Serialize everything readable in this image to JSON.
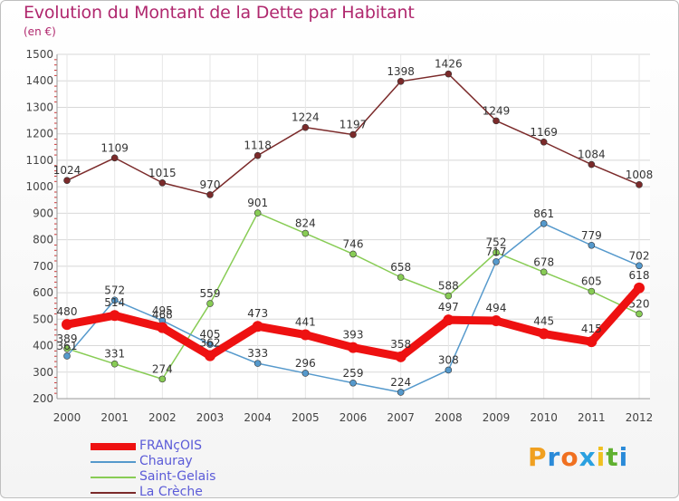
{
  "title": "Evolution du Montant de la Dette par Habitant",
  "subtitle": "(en €)",
  "logo": {
    "letters": [
      "P",
      "r",
      "o",
      "x",
      "i",
      "t",
      "i"
    ],
    "colors": [
      "#f0a020",
      "#2a8ad8",
      "#f07020",
      "#2aa0e0",
      "#f0c020",
      "#60b030",
      "#2a8ad8"
    ]
  },
  "chart_data": {
    "type": "line",
    "x": [
      "2000",
      "2001",
      "2002",
      "2003",
      "2004",
      "2005",
      "2006",
      "2007",
      "2008",
      "2009",
      "2010",
      "2011",
      "2012"
    ],
    "ylim": [
      200,
      1500
    ],
    "yticks": [
      "200",
      "300",
      "400",
      "500",
      "600",
      "700",
      "800",
      "900",
      "1000",
      "1100",
      "1200",
      "1300",
      "1400",
      "1500"
    ],
    "grid": true,
    "series": [
      {
        "name": "La Crèche",
        "color": "#7b2a2a",
        "values": [
          1024,
          1109,
          1015,
          970,
          1118,
          1224,
          1197,
          1398,
          1426,
          1249,
          1169,
          1084,
          1008
        ],
        "labels": [
          "1024",
          "1109",
          "1015",
          "970",
          "1118",
          "1224",
          "1197",
          "1398",
          "1426",
          "1249",
          "1169",
          "1084",
          "1008"
        ]
      },
      {
        "name": "Saint-Gelais",
        "color": "#88cc55",
        "values": [
          389,
          331,
          274,
          559,
          901,
          824,
          746,
          658,
          588,
          752,
          678,
          605,
          520
        ],
        "labels": [
          "389",
          "331",
          "274",
          "559",
          "901",
          "824",
          "746",
          "658",
          "588",
          "752",
          "678",
          "605",
          "520"
        ]
      },
      {
        "name": "Chauray",
        "color": "#5599cc",
        "values": [
          361,
          572,
          495,
          405,
          333,
          296,
          259,
          224,
          308,
          717,
          861,
          779,
          702
        ],
        "labels": [
          "361",
          "572",
          "495",
          "405",
          "333",
          "296",
          "259",
          "224",
          "308",
          "717",
          "861",
          "779",
          "702"
        ]
      },
      {
        "name": "FRANçOIS",
        "color": "#ee1111",
        "values": [
          480,
          514,
          468,
          362,
          473,
          441,
          393,
          358,
          497,
          494,
          445,
          415,
          618
        ],
        "labels": [
          "480",
          "514",
          "468",
          "362",
          "473",
          "441",
          "393",
          "358",
          "497",
          "494",
          "445",
          "415",
          "618"
        ]
      }
    ]
  }
}
